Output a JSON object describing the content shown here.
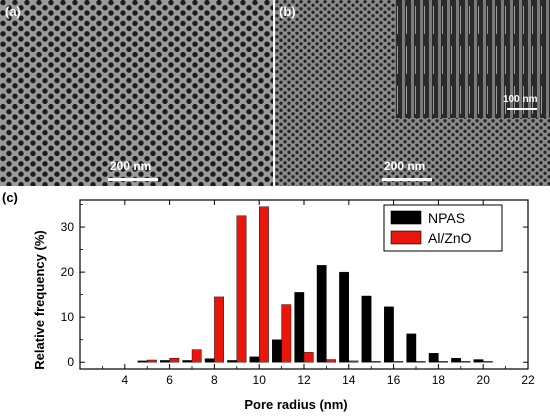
{
  "panels": {
    "a": {
      "label": "(a)",
      "scale": "200 nm"
    },
    "b": {
      "label": "(b)",
      "scale": "200 nm",
      "inset_scale": "100 nm"
    },
    "c": {
      "label": "(c)"
    }
  },
  "chart_data": {
    "type": "bar",
    "title": "",
    "xlabel": "Pore radius (nm)",
    "ylabel": "Relative frequency (%)",
    "xlim": [
      2,
      22
    ],
    "ylim": [
      -1.5,
      36
    ],
    "xticks": [
      "4",
      "6",
      "8",
      "10",
      "12",
      "14",
      "16",
      "18",
      "20",
      "22"
    ],
    "yticks": [
      "0",
      "10",
      "20",
      "30"
    ],
    "legend_position": "top-right",
    "series": [
      {
        "name": "NPAS",
        "color": "#000000",
        "x": [
          5,
          6,
          7,
          8,
          9,
          10,
          11,
          12,
          13,
          14,
          15,
          16,
          17,
          18,
          19,
          20
        ],
        "values": [
          0.3,
          0.4,
          0.4,
          0.8,
          0.4,
          1.2,
          5.0,
          15.5,
          21.5,
          20.0,
          14.7,
          12.3,
          6.3,
          2.0,
          0.9,
          0.6
        ]
      },
      {
        "name": "Al/ZnO",
        "color": "#e8160c",
        "x": [
          5,
          6,
          7,
          8,
          9,
          10,
          11,
          12,
          13,
          14,
          15,
          16,
          17,
          18,
          19,
          20
        ],
        "values": [
          0.5,
          0.9,
          2.8,
          14.5,
          32.5,
          34.5,
          12.8,
          2.2,
          0.6,
          0.3,
          0.2,
          0.2,
          0.2,
          0.2,
          0.2,
          0.2
        ]
      }
    ]
  }
}
